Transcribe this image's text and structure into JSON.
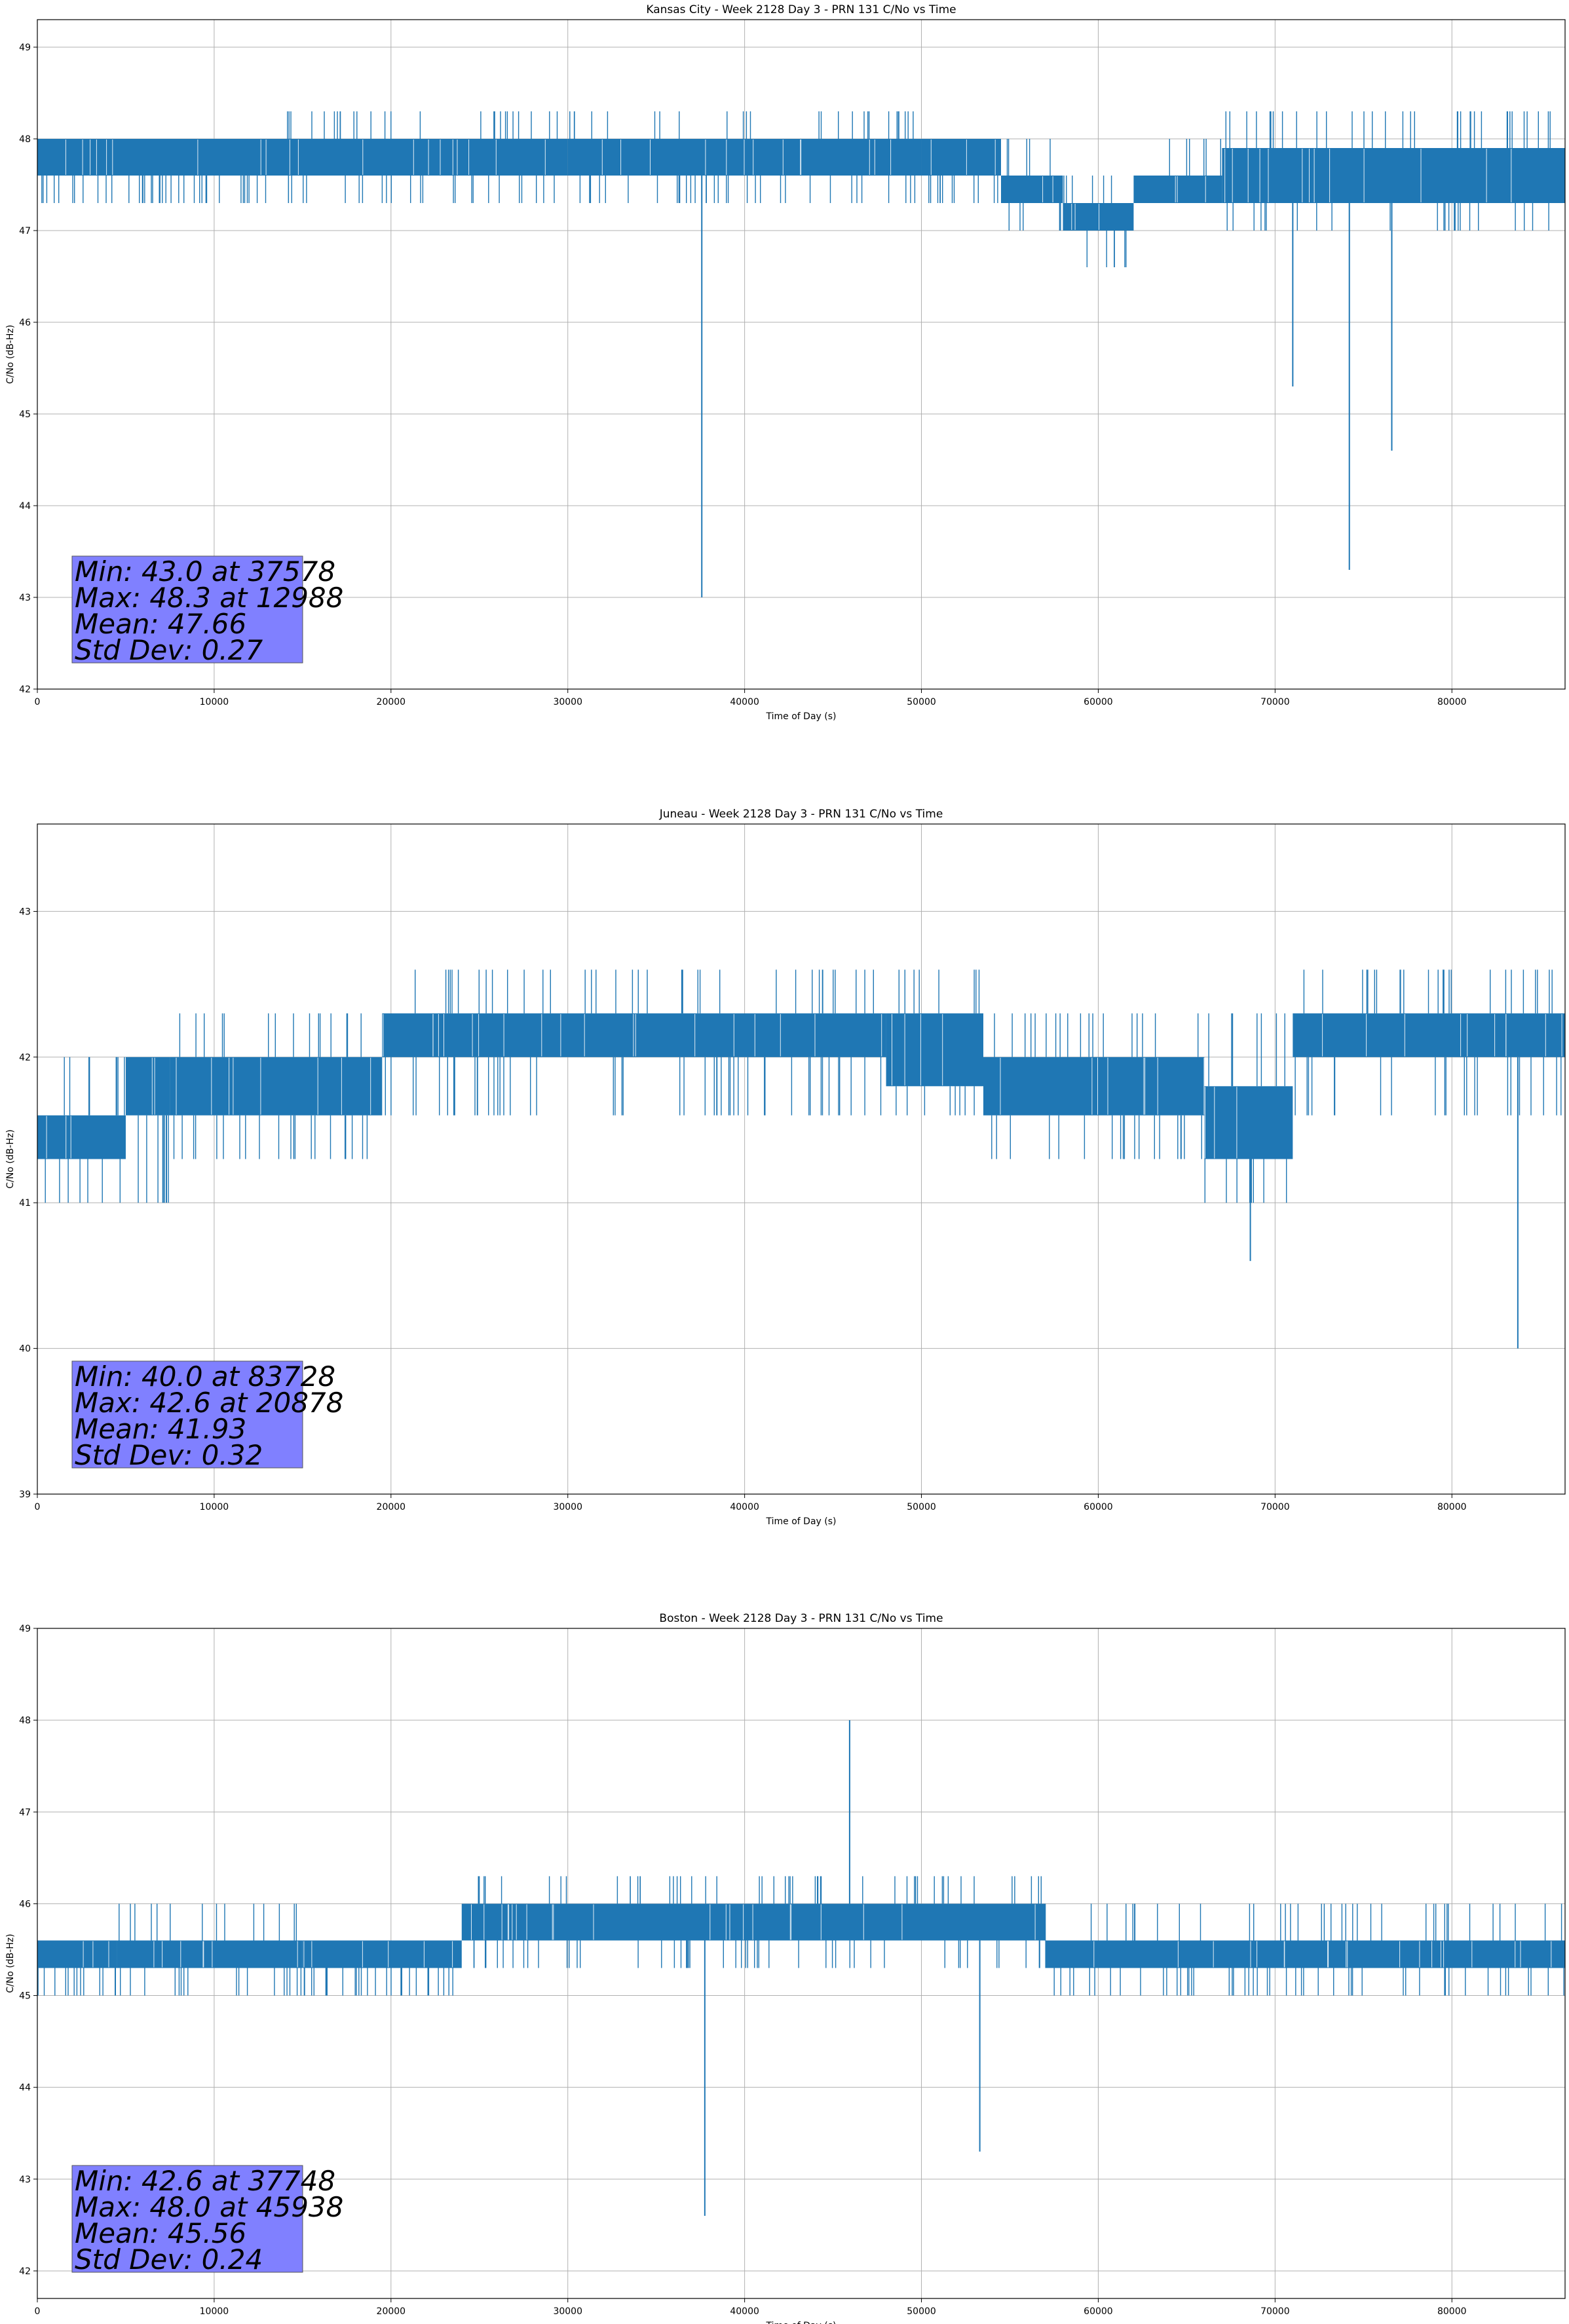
{
  "colors": {
    "line": "#1f77b4",
    "stats_box": "#8080ff",
    "grid": "#b0b0b0"
  },
  "chart_data": [
    {
      "type": "line",
      "title": "Kansas City - Week 2128 Day 3 - PRN 131 C/No vs Time",
      "xlabel": "Time of Day (s)",
      "ylabel": "C/No (dB-Hz)",
      "xlim": [
        0,
        86400
      ],
      "ylim": [
        42,
        49.3
      ],
      "xticks": [
        0,
        10000,
        20000,
        30000,
        40000,
        50000,
        60000,
        70000,
        80000
      ],
      "yticks": [
        42,
        43,
        44,
        45,
        46,
        47,
        48,
        49
      ],
      "grid": true,
      "stats": [
        "Min: 43.0 at 37578",
        "Max: 48.3 at 12988",
        "Mean: 47.66",
        "Std Dev: 0.27"
      ],
      "series": [
        {
          "bands": [
            {
              "x": [
                0,
                12988
              ],
              "low": 47.6,
              "high": 48.0,
              "flick_low": 47.3,
              "flick_high": 48.0
            },
            {
              "x": [
                12988,
                30000
              ],
              "low": 47.6,
              "high": 48.0,
              "flick_low": 47.3,
              "flick_high": 48.3
            },
            {
              "x": [
                30000,
                50000
              ],
              "low": 47.6,
              "high": 48.0,
              "flick_low": 47.3,
              "flick_high": 48.3
            },
            {
              "x": [
                50000,
                54500
              ],
              "low": 47.6,
              "high": 48.0,
              "flick_low": 47.3,
              "flick_high": 48.0
            },
            {
              "x": [
                54500,
                58000
              ],
              "low": 47.3,
              "high": 47.6,
              "flick_low": 47.0,
              "flick_high": 48.0
            },
            {
              "x": [
                58000,
                62000
              ],
              "low": 47.0,
              "high": 47.3,
              "flick_low": 46.6,
              "flick_high": 47.6
            },
            {
              "x": [
                62000,
                67000
              ],
              "low": 47.3,
              "high": 47.6,
              "flick_low": 47.3,
              "flick_high": 48.0
            },
            {
              "x": [
                67000,
                86400
              ],
              "low": 47.3,
              "high": 47.9,
              "flick_low": 47.0,
              "flick_high": 48.3
            }
          ],
          "spikes": [
            {
              "x": 37578,
              "y": 43.0
            },
            {
              "x": 71000,
              "y": 45.3
            },
            {
              "x": 74200,
              "y": 43.3
            },
            {
              "x": 76600,
              "y": 44.6
            }
          ]
        }
      ]
    },
    {
      "type": "line",
      "title": "Juneau - Week 2128 Day 3 - PRN 131 C/No vs Time",
      "xlabel": "Time of Day (s)",
      "ylabel": "C/No (dB-Hz)",
      "xlim": [
        0,
        86400
      ],
      "ylim": [
        39,
        43.6
      ],
      "xticks": [
        0,
        10000,
        20000,
        30000,
        40000,
        50000,
        60000,
        70000,
        80000
      ],
      "yticks": [
        39,
        40,
        41,
        42,
        43
      ],
      "grid": true,
      "stats": [
        "Min: 40.0 at 83728",
        "Max: 42.6 at 20878",
        "Mean: 41.93",
        "Std Dev: 0.32"
      ],
      "series": [
        {
          "bands": [
            {
              "x": [
                0,
                5000
              ],
              "low": 41.3,
              "high": 41.6,
              "flick_low": 41.0,
              "flick_high": 42.0
            },
            {
              "x": [
                5000,
                7500
              ],
              "low": 41.6,
              "high": 42.0,
              "flick_low": 41.0,
              "flick_high": 42.0
            },
            {
              "x": [
                7500,
                19500
              ],
              "low": 41.6,
              "high": 42.0,
              "flick_low": 41.3,
              "flick_high": 42.3
            },
            {
              "x": [
                19500,
                48000
              ],
              "low": 42.0,
              "high": 42.3,
              "flick_low": 41.6,
              "flick_high": 42.6
            },
            {
              "x": [
                48000,
                53500
              ],
              "low": 41.8,
              "high": 42.3,
              "flick_low": 41.6,
              "flick_high": 42.6
            },
            {
              "x": [
                53500,
                66000
              ],
              "low": 41.6,
              "high": 42.0,
              "flick_low": 41.3,
              "flick_high": 42.3
            },
            {
              "x": [
                66000,
                71000
              ],
              "low": 41.3,
              "high": 41.8,
              "flick_low": 41.0,
              "flick_high": 42.3
            },
            {
              "x": [
                71000,
                86400
              ],
              "low": 42.0,
              "high": 42.3,
              "flick_low": 41.6,
              "flick_high": 42.6
            }
          ],
          "spikes": [
            {
              "x": 7300,
              "y": 41.0
            },
            {
              "x": 68600,
              "y": 40.6
            },
            {
              "x": 83728,
              "y": 40.0
            }
          ]
        }
      ]
    },
    {
      "type": "line",
      "title": "Boston - Week 2128 Day 3 - PRN 131 C/No vs Time",
      "xlabel": "Time of Day (s)",
      "ylabel": "C/No (dB-Hz)",
      "xlim": [
        0,
        86400
      ],
      "ylim": [
        41.7,
        49
      ],
      "xticks": [
        0,
        10000,
        20000,
        30000,
        40000,
        50000,
        60000,
        70000,
        80000
      ],
      "yticks": [
        42,
        43,
        44,
        45,
        46,
        47,
        48,
        49
      ],
      "grid": true,
      "stats": [
        "Min: 42.6 at 37748",
        "Max: 48.0 at 45938",
        "Mean: 45.56",
        "Std Dev: 0.24"
      ],
      "series": [
        {
          "bands": [
            {
              "x": [
                0,
                4500
              ],
              "low": 45.3,
              "high": 45.6,
              "flick_low": 45.0,
              "flick_high": 45.6
            },
            {
              "x": [
                4500,
                15000
              ],
              "low": 45.3,
              "high": 45.6,
              "flick_low": 45.0,
              "flick_high": 46.0
            },
            {
              "x": [
                15000,
                24000
              ],
              "low": 45.3,
              "high": 45.6,
              "flick_low": 45.0,
              "flick_high": 45.6
            },
            {
              "x": [
                24000,
                57000
              ],
              "low": 45.6,
              "high": 46.0,
              "flick_low": 45.3,
              "flick_high": 46.3
            },
            {
              "x": [
                57000,
                86400
              ],
              "low": 45.3,
              "high": 45.6,
              "flick_low": 45.0,
              "flick_high": 46.0
            }
          ],
          "spikes": [
            {
              "x": 37748,
              "y": 42.6
            },
            {
              "x": 45938,
              "y": 48.0
            },
            {
              "x": 53300,
              "y": 43.3
            }
          ]
        }
      ]
    }
  ]
}
